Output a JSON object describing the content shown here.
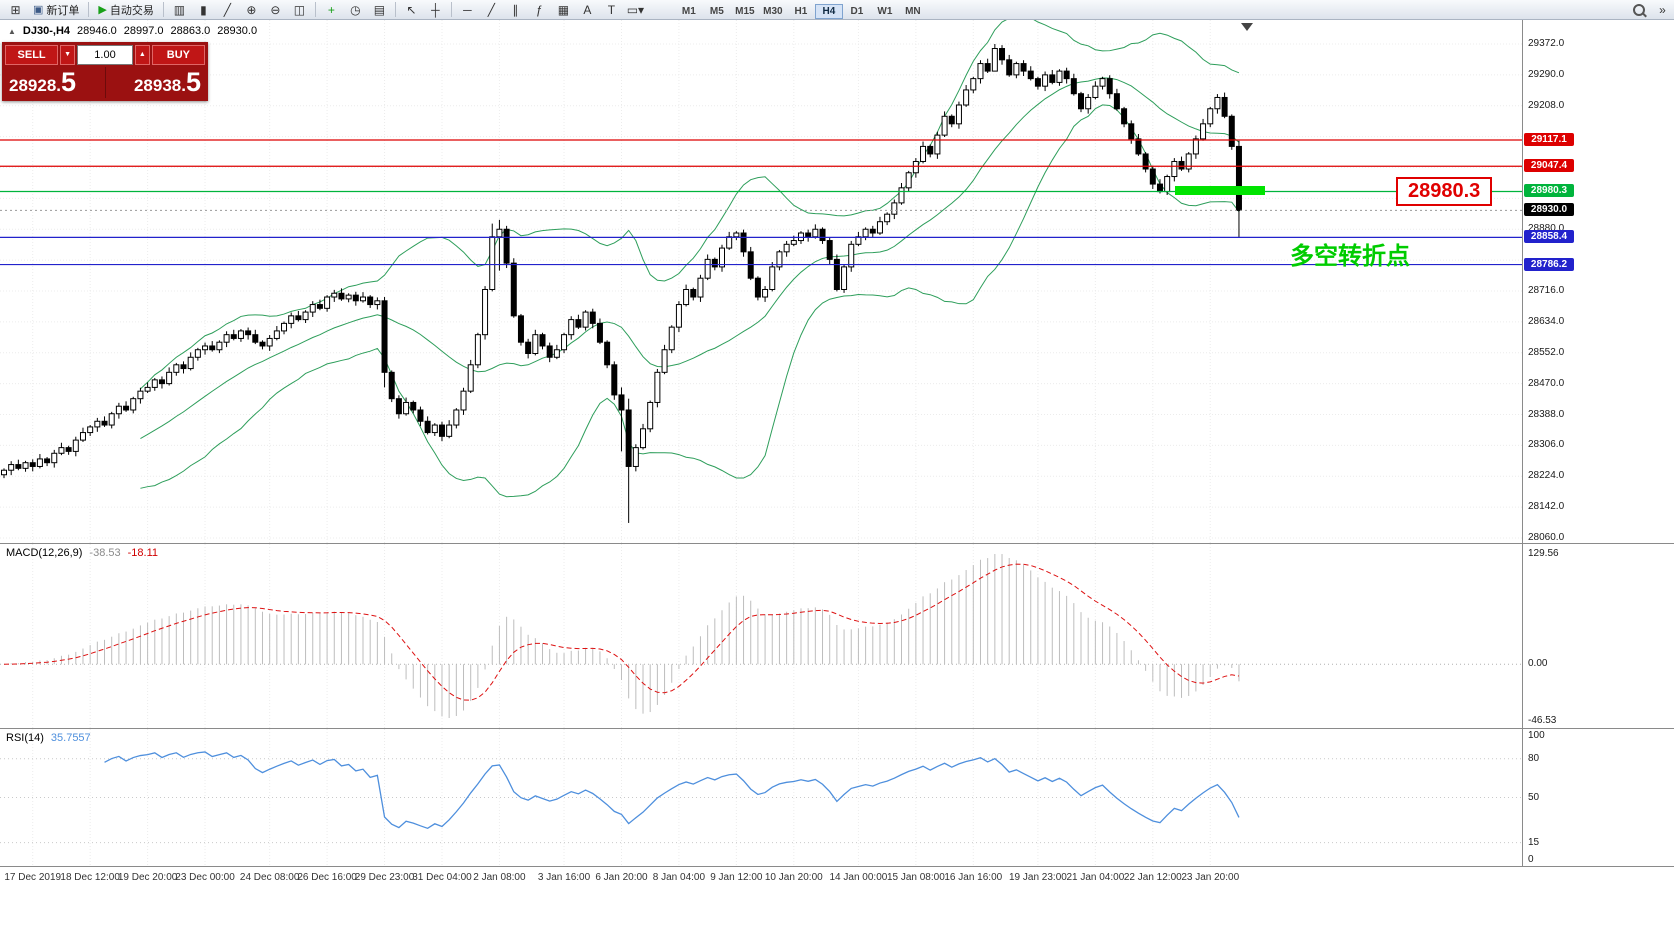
{
  "toolbar": {
    "new_order_label": "新订单",
    "autotrading_label": "自动交易",
    "timeframes": [
      "M1",
      "M5",
      "M15",
      "M30",
      "H1",
      "H4",
      "D1",
      "W1",
      "MN"
    ],
    "active_timeframe": "H4",
    "icons": {
      "new_chart": "⊞",
      "new_order": "▣",
      "autotrading": "▶",
      "bars": "▥",
      "candles": "▮",
      "line": "╱",
      "zoom_in": "⊕",
      "zoom_out": "⊖",
      "tile": "◫",
      "indicators": "+",
      "periods": "◷",
      "templates": "▤",
      "cursor": "↖",
      "crosshair": "┼",
      "hline": "─",
      "trendline": "╱",
      "channel": "∥",
      "fibo": "ƒ",
      "grid": "▦",
      "text": "A",
      "label": "T",
      "shapes": "▭",
      "dropdown": "▾",
      "panels": "»"
    }
  },
  "symbol_info": {
    "collapse_icon": "▲",
    "name": "DJ30-,H4",
    "open": "28946.0",
    "high": "28997.0",
    "low": "28863.0",
    "close": "28930.0"
  },
  "trade_panel": {
    "sell_label": "SELL",
    "buy_label": "BUY",
    "volume": "1.00",
    "spinner_up": "▲",
    "spinner_down": "▼",
    "sell_price_prefix": "28928.",
    "sell_price_big": "5",
    "buy_price_prefix": "28938.",
    "buy_price_big": "5"
  },
  "hlines": [
    {
      "price": 29117.1,
      "label": "29117.1",
      "color": "#dd0000"
    },
    {
      "price": 29047.4,
      "label": "29047.4",
      "color": "#dd0000"
    },
    {
      "price": 28980.3,
      "label": "28980.3",
      "color": "#00b43c"
    },
    {
      "price": 28858.4,
      "label": "28858.4",
      "color": "#2222cc"
    },
    {
      "price": 28786.2,
      "label": "28786.2",
      "color": "#2222cc"
    }
  ],
  "current_price": {
    "price": 28930.0,
    "label": "28930.0",
    "color": "#000000"
  },
  "annotations": {
    "turning_point_text": "多空转折点",
    "price_callout_text": "28980.3"
  },
  "macd": {
    "name": "MACD(12,26,9)",
    "value_main": "-38.53",
    "value_signal": "-18.11",
    "scale_top": "129.56",
    "scale_zero": "0.00",
    "scale_bottom": "-46.53"
  },
  "rsi": {
    "name": "RSI(14)",
    "value": "35.7557",
    "scale": [
      "100",
      "80",
      "50",
      "15",
      "0"
    ],
    "levels": [
      80,
      50,
      15
    ]
  },
  "chart_data": {
    "type": "candlestick",
    "symbol": "DJ30-",
    "timeframe": "H4",
    "ylim": [
      28060,
      29372
    ],
    "bull_color": "#ffffff",
    "bear_color": "#000000",
    "bollinger_color": "#2e9e5b",
    "macd_signal_color": "#dd1111",
    "rsi_color": "#4e8fdd",
    "indicators": {
      "bollinger_period": 20,
      "bollinger_dev": 2,
      "macd": [
        12,
        26,
        9
      ],
      "rsi_period": 14
    },
    "price_ticks": [
      29372,
      29290,
      29208,
      29126,
      29044,
      28962,
      28880,
      28798,
      28716,
      28634,
      28552,
      28470,
      28388,
      28306,
      28224,
      28142,
      28060
    ],
    "closes": [
      28240,
      28255,
      28245,
      28260,
      28250,
      28270,
      28260,
      28285,
      28300,
      28290,
      28320,
      28340,
      28355,
      28370,
      28360,
      28390,
      28410,
      28400,
      28430,
      28450,
      28460,
      28480,
      28470,
      28500,
      28520,
      28510,
      28540,
      28560,
      28570,
      28560,
      28580,
      28600,
      28590,
      28610,
      28600,
      28580,
      28570,
      28590,
      28610,
      28630,
      28650,
      28640,
      28660,
      28680,
      28670,
      28700,
      28710,
      28695,
      28705,
      28690,
      28700,
      28680,
      28690,
      28500,
      28430,
      28390,
      28420,
      28400,
      28370,
      28340,
      28360,
      28330,
      28360,
      28400,
      28450,
      28520,
      28600,
      28720,
      28860,
      28880,
      28790,
      28650,
      28580,
      28550,
      28600,
      28570,
      28540,
      28560,
      28600,
      28640,
      28620,
      28660,
      28630,
      28580,
      28520,
      28440,
      28400,
      28250,
      28300,
      28350,
      28420,
      28500,
      28560,
      28620,
      28680,
      28720,
      28700,
      28750,
      28800,
      28780,
      28830,
      28860,
      28870,
      28820,
      28750,
      28700,
      28720,
      28780,
      28820,
      28840,
      28850,
      28870,
      28860,
      28880,
      28850,
      28800,
      28720,
      28780,
      28840,
      28860,
      28880,
      28870,
      28900,
      28920,
      28950,
      28990,
      29030,
      29060,
      29100,
      29080,
      29130,
      29180,
      29160,
      29210,
      29250,
      29280,
      29320,
      29300,
      29360,
      29330,
      29290,
      29320,
      29300,
      29280,
      29260,
      29290,
      29270,
      29300,
      29280,
      29240,
      29200,
      29230,
      29260,
      29280,
      29240,
      29200,
      29160,
      29120,
      29080,
      29040,
      29000,
      28980,
      29020,
      29060,
      29040,
      29080,
      29120,
      29160,
      29200,
      29230,
      29180,
      29100,
      28930
    ],
    "wick_overrides": {
      "53": [
        28700,
        28460
      ],
      "68": [
        28895,
        28715
      ],
      "69": [
        28905,
        28770
      ],
      "86": [
        28460,
        28290
      ],
      "87": [
        28430,
        28100
      ],
      "138": [
        29372,
        29315
      ],
      "172": [
        29115,
        28858
      ]
    },
    "time_labels": [
      {
        "text": "17 Dec 2019",
        "i": 4
      },
      {
        "text": "18 Dec 12:00",
        "i": 12
      },
      {
        "text": "19 Dec 20:00",
        "i": 20
      },
      {
        "text": "23 Dec 00:00",
        "i": 28
      },
      {
        "text": "24 Dec 08:00",
        "i": 37
      },
      {
        "text": "26 Dec 16:00",
        "i": 45
      },
      {
        "text": "29 Dec 23:00",
        "i": 53
      },
      {
        "text": "31 Dec 04:00",
        "i": 61
      },
      {
        "text": "2 Jan 08:00",
        "i": 69
      },
      {
        "text": "3 Jan 16:00",
        "i": 78
      },
      {
        "text": "6 Jan 20:00",
        "i": 86
      },
      {
        "text": "8 Jan 04:00",
        "i": 94
      },
      {
        "text": "9 Jan 12:00",
        "i": 102
      },
      {
        "text": "10 Jan 20:00",
        "i": 110
      },
      {
        "text": "14 Jan 00:00",
        "i": 119
      },
      {
        "text": "15 Jan 08:00",
        "i": 127
      },
      {
        "text": "16 Jan 16:00",
        "i": 135
      },
      {
        "text": "19 Jan 23:00",
        "i": 144
      },
      {
        "text": "21 Jan 04:00",
        "i": 152
      },
      {
        "text": "22 Jan 12:00",
        "i": 160
      },
      {
        "text": "23 Jan 20:00",
        "i": 168
      }
    ]
  }
}
